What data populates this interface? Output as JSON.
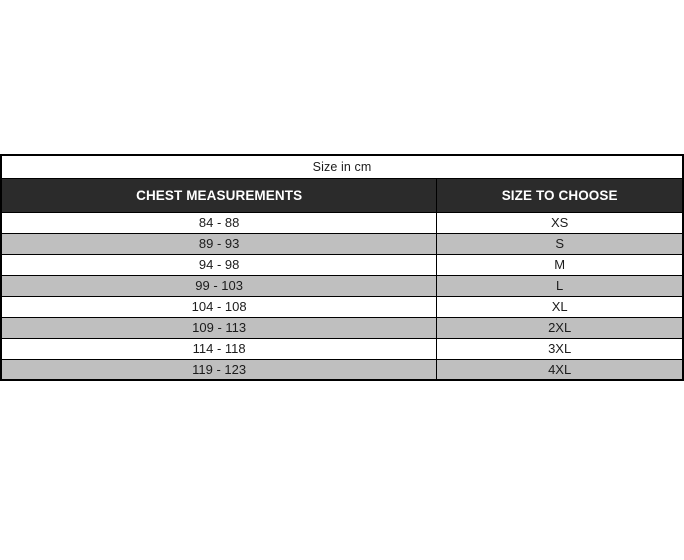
{
  "page": {
    "background": "#ffffff"
  },
  "table": {
    "title": "Size in cm",
    "columns": [
      {
        "label": "CHEST MEASUREMENTS"
      },
      {
        "label": "SIZE TO CHOOSE"
      }
    ],
    "rows": [
      {
        "chest": "84 - 88",
        "size": "XS"
      },
      {
        "chest": "89 - 93",
        "size": "S"
      },
      {
        "chest": "94 - 98",
        "size": "M"
      },
      {
        "chest": "99 - 103",
        "size": "L"
      },
      {
        "chest": "104 - 108",
        "size": "XL"
      },
      {
        "chest": "109 - 113",
        "size": "2XL"
      },
      {
        "chest": "114 - 118",
        "size": "3XL"
      },
      {
        "chest": "119 - 123",
        "size": "4XL"
      }
    ],
    "colors": {
      "header_bg": "#2b2b2b",
      "header_text": "#ffffff",
      "row_alt_bg": "#bfbfbf",
      "border": "#000000"
    }
  },
  "chart_data": {
    "type": "table",
    "title": "Size in cm",
    "columns": [
      "CHEST MEASUREMENTS",
      "SIZE TO CHOOSE"
    ],
    "rows": [
      [
        "84 - 88",
        "XS"
      ],
      [
        "89 - 93",
        "S"
      ],
      [
        "94 - 98",
        "M"
      ],
      [
        "99 - 103",
        "L"
      ],
      [
        "104 - 108",
        "XL"
      ],
      [
        "109 - 113",
        "2XL"
      ],
      [
        "114 - 118",
        "3XL"
      ],
      [
        "119 - 123",
        "4XL"
      ]
    ],
    "layout_hints": {
      "title_row_spans_columns": true,
      "alternating_row_shading": [
        "#ffffff",
        "#bfbfbf"
      ],
      "column_width_ratio": [
        0.639,
        0.361
      ]
    }
  }
}
